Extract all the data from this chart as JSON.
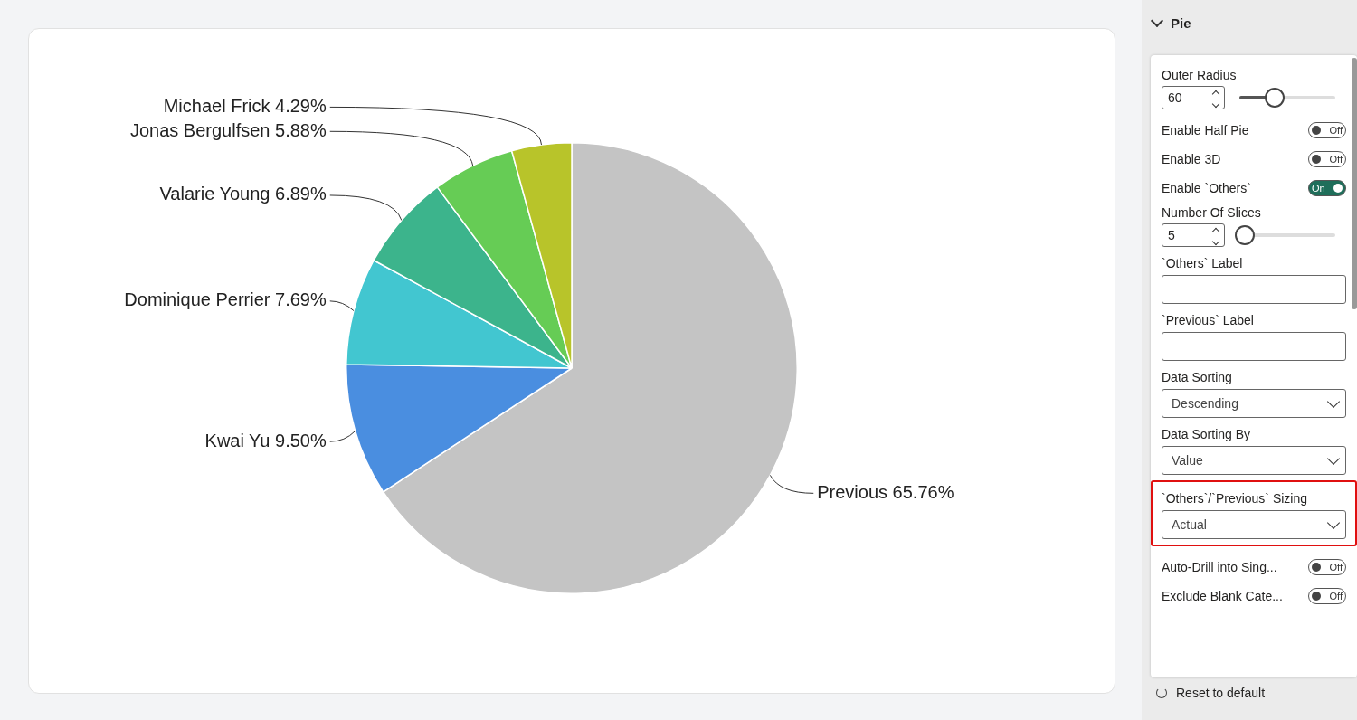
{
  "chart_data": [
    {
      "type": "pie",
      "categories": [
        "Previous",
        "Kwai Yu",
        "Dominique Perrier",
        "Valarie Young",
        "Jonas Bergulfsen",
        "Michael Frick"
      ],
      "values": [
        65.76,
        9.5,
        7.69,
        6.89,
        5.88,
        4.29
      ],
      "value_labels": [
        "65.76%",
        "9.50%",
        "7.69%",
        "6.89%",
        "5.88%",
        "4.29%"
      ],
      "colors": [
        "#c4c4c4",
        "#4a8ee0",
        "#42c6d0",
        "#3cb48c",
        "#66cc55",
        "#b8c42a"
      ],
      "legend": false
    },
    {
      "type": "other",
      "title": "Pie",
      "annotations": [
        "Outer Radius",
        "60",
        "Enable Half Pie",
        "Off",
        "Enable 3D",
        "Off",
        "Enable `Others`",
        "On",
        "Number Of Slices",
        "5",
        "`Others` Label",
        "`Previous` Label",
        "Data Sorting",
        "Descending",
        "Data Sorting By",
        "Value",
        "`Others`/`Previous` Sizing",
        "Actual",
        "Auto-Drill into Sing...",
        "Off",
        "Exclude Blank Cate...",
        "Off",
        "Reset to default"
      ]
    }
  ]
}
